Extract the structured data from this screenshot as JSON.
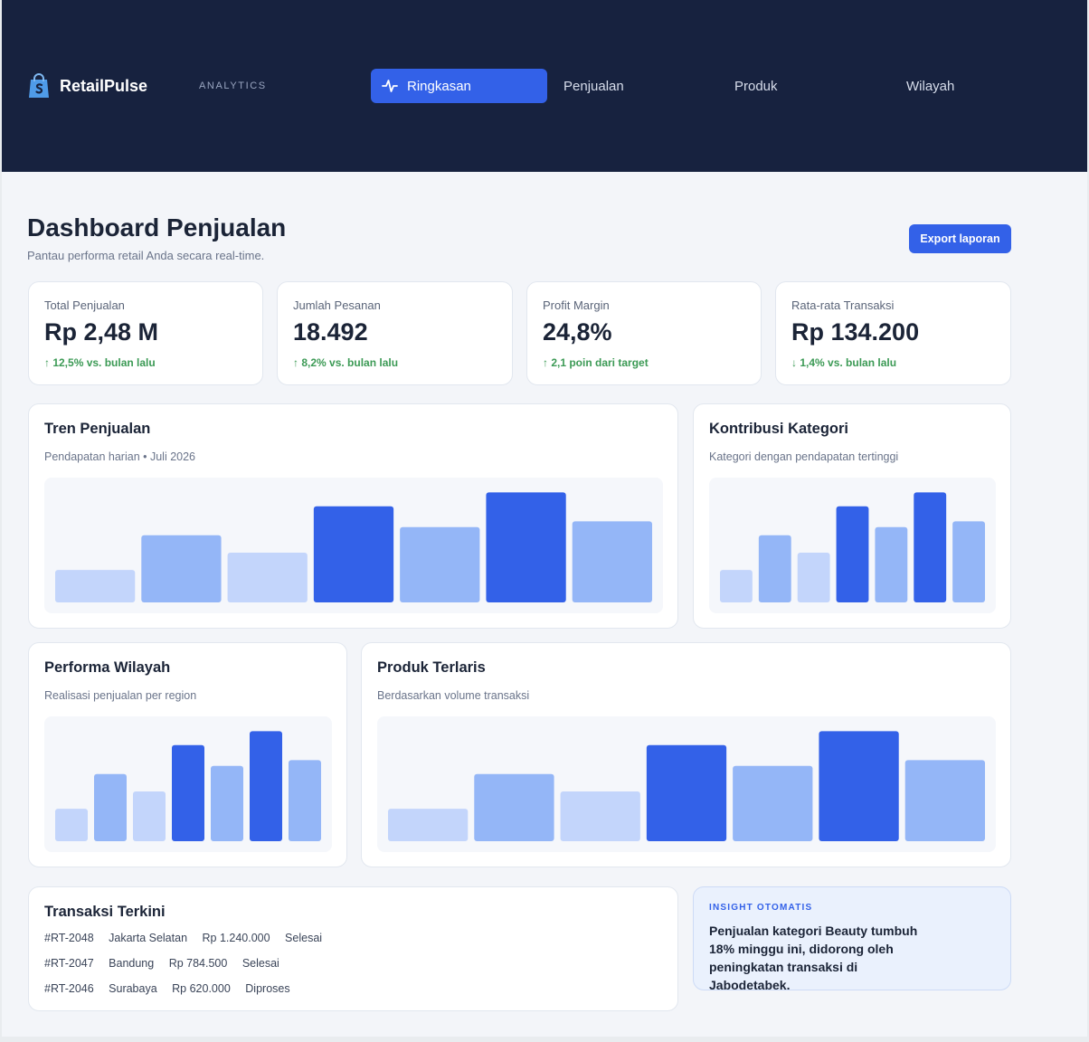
{
  "header": {
    "brand": "RetailPulse",
    "brand_sub": "ANALYTICS",
    "nav": [
      {
        "label": "Ringkasan",
        "icon": "activity-icon",
        "active": true
      },
      {
        "label": "Penjualan"
      },
      {
        "label": "Produk"
      },
      {
        "label": "Wilayah"
      }
    ]
  },
  "page": {
    "title": "Dashboard Penjualan",
    "subtitle": "Pantau performa retail Anda secara real-time.",
    "export_label": "Export laporan"
  },
  "kpis": [
    {
      "label": "Total Penjualan",
      "value": "Rp 2,48 M",
      "delta": "↑ 12,5% vs. bulan lalu"
    },
    {
      "label": "Jumlah Pesanan",
      "value": "18.492",
      "delta": "↑ 8,2% vs. bulan lalu"
    },
    {
      "label": "Profit Margin",
      "value": "24,8%",
      "delta": "↑ 2,1 poin dari target"
    },
    {
      "label": "Rata-rata Transaksi",
      "value": "Rp 134.200",
      "delta": "↓ 1,4% vs. bulan lalu"
    }
  ],
  "cards": {
    "trend": {
      "title": "Tren Penjualan",
      "subtitle": "Pendapatan harian • Juli 2026"
    },
    "category": {
      "title": "Kontribusi Kategori",
      "subtitle": "Kategori dengan pendapatan tertinggi"
    },
    "region": {
      "title": "Performa Wilayah",
      "subtitle": "Realisasi penjualan per region"
    },
    "products": {
      "title": "Produk Terlaris",
      "subtitle": "Berdasarkan volume transaksi"
    }
  },
  "chart_data": [
    {
      "type": "bar",
      "values": [
        28,
        58,
        43,
        83,
        65,
        95,
        70
      ],
      "colors": [
        "#c3d5fb",
        "#94b6f7",
        "#c3d5fb",
        "#3361e8",
        "#94b6f7",
        "#3361e8",
        "#94b6f7"
      ]
    },
    {
      "type": "bar",
      "values": [
        28,
        58,
        43,
        83,
        65,
        95,
        70
      ],
      "colors": [
        "#c3d5fb",
        "#94b6f7",
        "#c3d5fb",
        "#3361e8",
        "#94b6f7",
        "#3361e8",
        "#94b6f7"
      ]
    },
    {
      "type": "bar",
      "values": [
        28,
        58,
        43,
        83,
        65,
        95,
        70
      ],
      "colors": [
        "#c3d5fb",
        "#94b6f7",
        "#c3d5fb",
        "#3361e8",
        "#94b6f7",
        "#3361e8",
        "#94b6f7"
      ]
    },
    {
      "type": "bar",
      "values": [
        28,
        58,
        43,
        83,
        65,
        95,
        70
      ],
      "colors": [
        "#c3d5fb",
        "#94b6f7",
        "#c3d5fb",
        "#3361e8",
        "#94b6f7",
        "#3361e8",
        "#94b6f7"
      ]
    }
  ],
  "transactions": {
    "title": "Transaksi Terkini",
    "rows": [
      {
        "id": "#RT-2048",
        "city": "Jakarta Selatan",
        "amount": "Rp 1.240.000",
        "status": "Selesai"
      },
      {
        "id": "#RT-2047",
        "city": "Bandung",
        "amount": "Rp 784.500",
        "status": "Selesai"
      },
      {
        "id": "#RT-2046",
        "city": "Surabaya",
        "amount": "Rp 620.000",
        "status": "Diproses"
      }
    ]
  },
  "insight": {
    "label": "INSIGHT OTOMATIS",
    "text": "Penjualan kategori Beauty tumbuh 18% minggu ini, didorong oleh peningkatan transaksi di Jabodetabek."
  },
  "colors": {
    "primary": "#3361e8",
    "header_bg": "#17223f",
    "positive": "#3c9a55"
  }
}
